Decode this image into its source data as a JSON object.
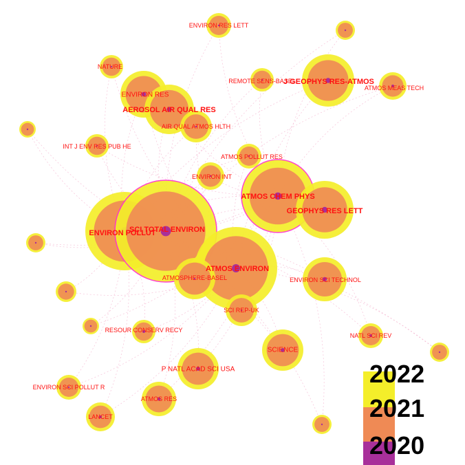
{
  "colors": {
    "ring_outer": "#f4ee2a",
    "ring_middle": "#ef8a55",
    "core": "#a8309a",
    "label": "#ff1010",
    "burst_ring": "#ff33cc",
    "link": "#f2a8c8"
  },
  "legend": {
    "years": [
      "2022",
      "2021",
      "2020"
    ]
  },
  "nodes": [
    {
      "id": "n1",
      "label": "ENVIRON RES LETT",
      "size": "small",
      "core": false
    },
    {
      "id": "n2",
      "label": "NATURE",
      "size": "small",
      "core": false
    },
    {
      "id": "n3",
      "label": "REMOTE SENS-BASEL",
      "size": "small",
      "core": false
    },
    {
      "id": "n4",
      "label": "J GEOPHYS RES-ATMOS",
      "size": "large",
      "core": true
    },
    {
      "id": "n5",
      "label": "ATMOS MEAS TECH",
      "size": "small",
      "core": true
    },
    {
      "id": "n6",
      "label": "ENVIRON RES",
      "size": "large",
      "core": true
    },
    {
      "id": "n7",
      "label": "AEROSOL AIR QUAL RES",
      "size": "large",
      "core": true
    },
    {
      "id": "n8",
      "label": "AIR QUAL ATMOS HLTH",
      "size": "medium",
      "core": false
    },
    {
      "id": "n9",
      "label": "INT J ENV RES PUB HE",
      "size": "small",
      "core": false
    },
    {
      "id": "n10",
      "label": "ATMOS POLLUT RES",
      "size": "small",
      "core": false
    },
    {
      "id": "n11",
      "label": "ENVIRON INT",
      "size": "small",
      "core": false
    },
    {
      "id": "n12",
      "label": "ATMOS CHEM PHYS",
      "size": "huge",
      "core": true
    },
    {
      "id": "n13",
      "label": "GEOPHYS RES LETT",
      "size": "large",
      "core": true
    },
    {
      "id": "n14",
      "label": "ENVIRON POLLUT",
      "size": "huge",
      "core": true
    },
    {
      "id": "n15",
      "label": "SCI TOTAL ENVIRON",
      "size": "huge",
      "core": true
    },
    {
      "id": "n16",
      "label": "ATMOS ENVIRON",
      "size": "huge",
      "core": true
    },
    {
      "id": "n17",
      "label": "ATMOSPHERE-BASEL",
      "size": "medium",
      "core": false
    },
    {
      "id": "n18",
      "label": "ENVIRON SCI TECHNOL",
      "size": "large",
      "core": true
    },
    {
      "id": "n19",
      "label": "SCI REP-UK",
      "size": "small",
      "core": false
    },
    {
      "id": "n20",
      "label": "RESOUR CONSERV RECY",
      "size": "small",
      "core": true
    },
    {
      "id": "n21",
      "label": "NATL SCI REV",
      "size": "small",
      "core": true
    },
    {
      "id": "n22",
      "label": "SCIENCE",
      "size": "medium",
      "core": true
    },
    {
      "id": "n23",
      "label": "P NATL ACAD SCI USA",
      "size": "medium",
      "core": true
    },
    {
      "id": "n24",
      "label": "ENVIRON SCI POLLUT R",
      "size": "small",
      "core": false
    },
    {
      "id": "n25",
      "label": "ATMOS RES",
      "size": "small",
      "core": true
    },
    {
      "id": "n26",
      "label": "LANCET",
      "size": "small",
      "core": true
    },
    {
      "id": "n27",
      "label": "",
      "size": "tiny",
      "core": false
    },
    {
      "id": "n28",
      "label": "",
      "size": "tiny",
      "core": false
    },
    {
      "id": "n29",
      "label": "",
      "size": "tiny",
      "core": false
    },
    {
      "id": "n30",
      "label": "",
      "size": "tiny",
      "core": false
    },
    {
      "id": "n31",
      "label": "",
      "size": "tiny",
      "core": false
    },
    {
      "id": "n32",
      "label": "",
      "size": "tiny",
      "core": false
    },
    {
      "id": "n33",
      "label": "",
      "size": "tiny",
      "core": false
    }
  ]
}
